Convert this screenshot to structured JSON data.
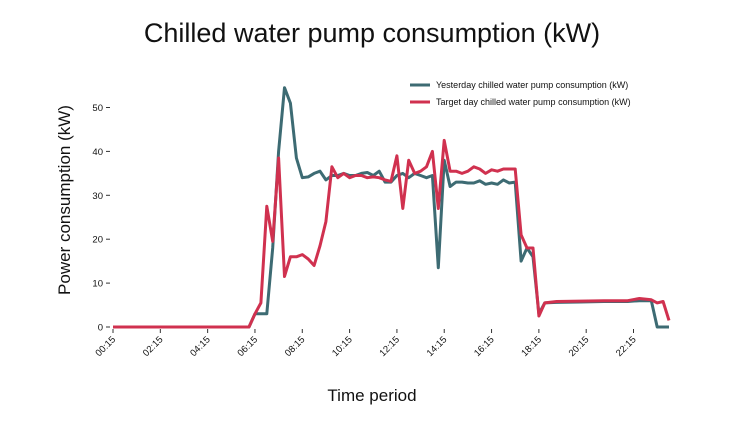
{
  "chart_data": {
    "type": "line",
    "title": "Chilled water pump consumption (kW)",
    "xlabel": "Time period",
    "ylabel": "Power consumption (kW)",
    "ylim": [
      0,
      60
    ],
    "yticks": [
      0,
      10,
      20,
      30,
      40,
      50
    ],
    "xticks": [
      "00:15",
      "02:15",
      "04:15",
      "06:15",
      "08:15",
      "10:15",
      "12:15",
      "14:15",
      "16:15",
      "18:15",
      "20:15",
      "22:15"
    ],
    "grid": false,
    "legend_position": "top-right",
    "series": [
      {
        "name": "Yesterday chilled water pump consumption (kW)",
        "color": "#3d6b73",
        "points": [
          [
            "00:15",
            0
          ],
          [
            "06:00",
            0
          ],
          [
            "06:15",
            3
          ],
          [
            "06:45",
            3
          ],
          [
            "07:00",
            18
          ],
          [
            "07:15",
            40
          ],
          [
            "07:30",
            54.5
          ],
          [
            "07:45",
            51
          ],
          [
            "08:00",
            38.5
          ],
          [
            "08:15",
            34
          ],
          [
            "08:30",
            34.2
          ],
          [
            "08:45",
            35
          ],
          [
            "09:00",
            35.5
          ],
          [
            "09:15",
            33.5
          ],
          [
            "09:30",
            34.5
          ],
          [
            "09:45",
            34.5
          ],
          [
            "10:00",
            35
          ],
          [
            "10:15",
            34.5
          ],
          [
            "10:30",
            34.5
          ],
          [
            "10:45",
            35
          ],
          [
            "11:00",
            35.2
          ],
          [
            "11:15",
            34.5
          ],
          [
            "11:30",
            35.5
          ],
          [
            "11:45",
            33
          ],
          [
            "12:00",
            33
          ],
          [
            "12:15",
            34.5
          ],
          [
            "12:30",
            35
          ],
          [
            "12:45",
            34
          ],
          [
            "13:00",
            35
          ],
          [
            "13:15",
            34.5
          ],
          [
            "13:30",
            34
          ],
          [
            "13:45",
            34.5
          ],
          [
            "14:00",
            13.5
          ],
          [
            "14:15",
            38
          ],
          [
            "14:30",
            32
          ],
          [
            "14:45",
            33
          ],
          [
            "15:00",
            33
          ],
          [
            "15:15",
            32.8
          ],
          [
            "15:30",
            32.8
          ],
          [
            "15:45",
            33.3
          ],
          [
            "16:00",
            32.5
          ],
          [
            "16:15",
            32.8
          ],
          [
            "16:30",
            32.5
          ],
          [
            "16:45",
            33.5
          ],
          [
            "17:00",
            32.8
          ],
          [
            "17:15",
            33
          ],
          [
            "17:30",
            15
          ],
          [
            "17:45",
            18
          ],
          [
            "18:00",
            16
          ],
          [
            "18:15",
            3
          ],
          [
            "18:30",
            5.5
          ],
          [
            "19:00",
            5.6
          ],
          [
            "20:00",
            5.7
          ],
          [
            "21:00",
            5.8
          ],
          [
            "22:00",
            5.8
          ],
          [
            "22:30",
            6
          ],
          [
            "23:00",
            6
          ],
          [
            "23:15",
            0
          ],
          [
            "23:45",
            0
          ]
        ]
      },
      {
        "name": "Target day chilled water pump consumption (kW)",
        "color": "#d0314f",
        "points": [
          [
            "00:15",
            0
          ],
          [
            "06:00",
            0
          ],
          [
            "06:15",
            3
          ],
          [
            "06:30",
            5.5
          ],
          [
            "06:45",
            27.5
          ],
          [
            "07:00",
            19.5
          ],
          [
            "07:15",
            38.5
          ],
          [
            "07:30",
            11.5
          ],
          [
            "07:45",
            16
          ],
          [
            "08:00",
            16
          ],
          [
            "08:15",
            16.5
          ],
          [
            "08:30",
            15.5
          ],
          [
            "08:45",
            14
          ],
          [
            "09:00",
            18.5
          ],
          [
            "09:15",
            24
          ],
          [
            "09:30",
            36.5
          ],
          [
            "09:45",
            34
          ],
          [
            "10:00",
            35
          ],
          [
            "10:15",
            34
          ],
          [
            "10:30",
            34.5
          ],
          [
            "10:45",
            34.5
          ],
          [
            "11:00",
            34
          ],
          [
            "11:15",
            34.2
          ],
          [
            "11:30",
            34
          ],
          [
            "11:45",
            33.5
          ],
          [
            "12:00",
            33.2
          ],
          [
            "12:15",
            39
          ],
          [
            "12:30",
            27
          ],
          [
            "12:45",
            38
          ],
          [
            "13:00",
            35
          ],
          [
            "13:15",
            35.5
          ],
          [
            "13:30",
            36.5
          ],
          [
            "13:45",
            40
          ],
          [
            "14:00",
            27
          ],
          [
            "14:15",
            42.5
          ],
          [
            "14:30",
            35.5
          ],
          [
            "14:45",
            35.5
          ],
          [
            "15:00",
            35
          ],
          [
            "15:15",
            35.5
          ],
          [
            "15:30",
            36.5
          ],
          [
            "15:45",
            36
          ],
          [
            "16:00",
            35
          ],
          [
            "16:15",
            35.8
          ],
          [
            "16:30",
            35.5
          ],
          [
            "16:45",
            36
          ],
          [
            "17:00",
            36
          ],
          [
            "17:15",
            36
          ],
          [
            "17:30",
            21
          ],
          [
            "17:45",
            18
          ],
          [
            "18:00",
            18
          ],
          [
            "18:15",
            2.5
          ],
          [
            "18:30",
            5.5
          ],
          [
            "19:00",
            5.8
          ],
          [
            "20:00",
            5.9
          ],
          [
            "21:00",
            6
          ],
          [
            "22:00",
            6
          ],
          [
            "22:30",
            6.5
          ],
          [
            "23:00",
            6.2
          ],
          [
            "23:15",
            5.5
          ],
          [
            "23:30",
            5.8
          ],
          [
            "23:45",
            1.5
          ]
        ]
      }
    ]
  }
}
